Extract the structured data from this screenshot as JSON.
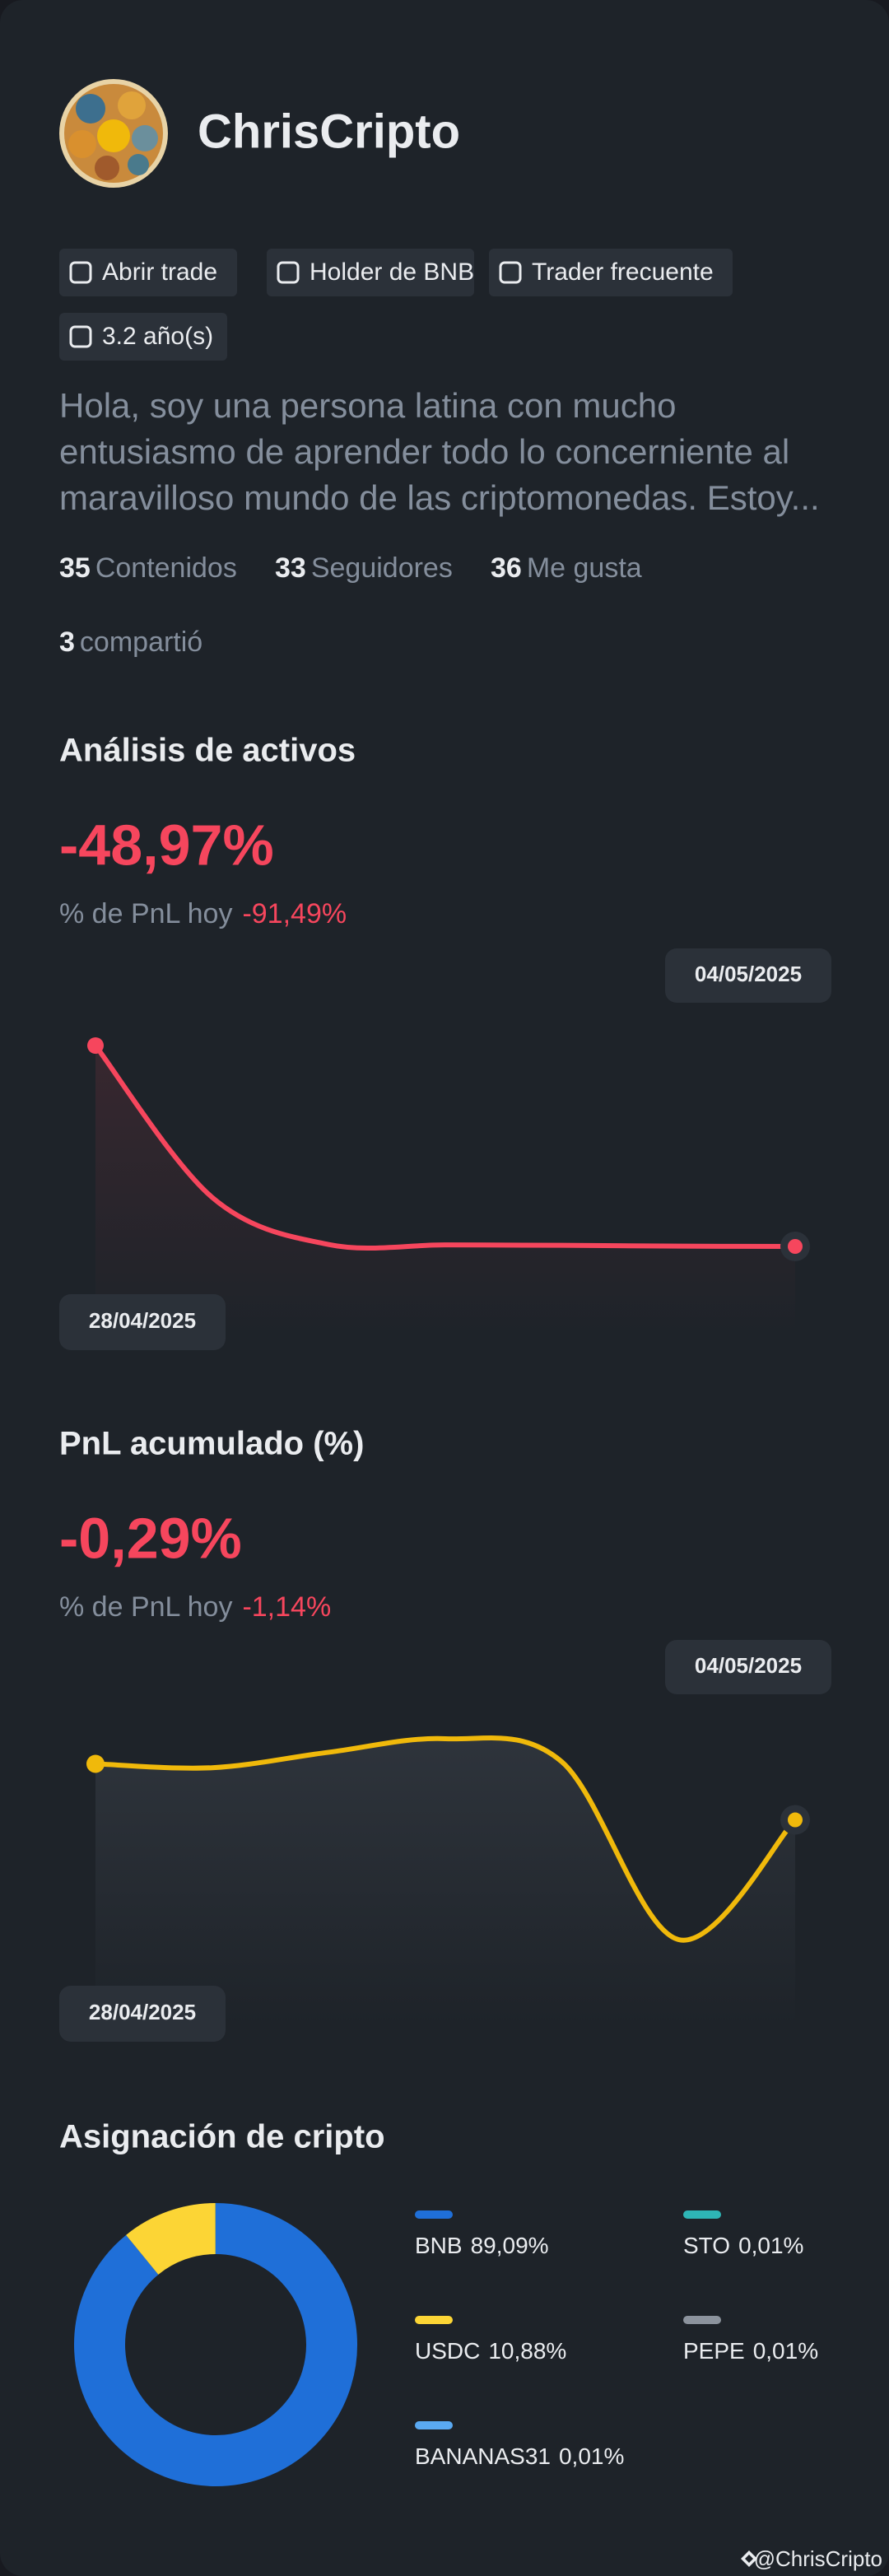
{
  "profile": {
    "name": "ChrisCripto",
    "tags": [
      "Abrir trade",
      "Holder de BNB",
      "Trader frecuente",
      "3.2 año(s)"
    ],
    "bio_lines": [
      "Hola, soy una persona latina con mucho",
      "entusiasmo de aprender todo lo concerniente al",
      "maravilloso mundo de las criptomonedas. Estoy..."
    ],
    "stats": [
      {
        "value": 35,
        "label": "Contenidos"
      },
      {
        "value": 33,
        "label": "Seguidores"
      },
      {
        "value": 36,
        "label": "Me gusta"
      },
      {
        "value": 3,
        "label": "compartió"
      }
    ]
  },
  "sections": [
    {
      "title": "Análisis de activos",
      "headline": "-48,97%",
      "pnl_label": "% de PnL hoy",
      "pnl_value": "-91,49%",
      "chart": {
        "type": "line",
        "x": [
          "28/04/2025",
          null,
          null,
          null,
          null,
          null,
          "04/05/2025"
        ],
        "values": [
          0,
          -37,
          -48.5,
          -48.6,
          -48.7,
          -48.9,
          -48.97
        ],
        "color": "#f6465d"
      }
    },
    {
      "title": "PnL acumulado (%)",
      "headline": "-0,29%",
      "pnl_label": "% de PnL hoy",
      "pnl_value": "-1,14%",
      "chart": {
        "type": "line",
        "x": [
          "28/04/2025",
          null,
          null,
          null,
          null,
          null,
          "04/05/2025"
        ],
        "values": [
          0,
          -0.02,
          0.06,
          0.13,
          0.01,
          -0.91,
          -0.29
        ],
        "color": "#f0b90b"
      }
    }
  ],
  "allocation": {
    "title": "Asignación de cripto",
    "chart": {
      "type": "pie",
      "categories": [
        "BNB",
        "USDC",
        "BANANAS31",
        "STO",
        "PEPE"
      ],
      "values": [
        89.09,
        10.88,
        0.01,
        0.01,
        0.01
      ],
      "value_labels": [
        "89,09%",
        "10,88%",
        "0,01%",
        "0,01%",
        "0,01%"
      ],
      "colors": [
        "#1f6fd8",
        "#fcd535",
        "#5aa9f2",
        "#2eb5b5",
        "#8c939d"
      ]
    }
  },
  "footer": "@ChrisCripto"
}
